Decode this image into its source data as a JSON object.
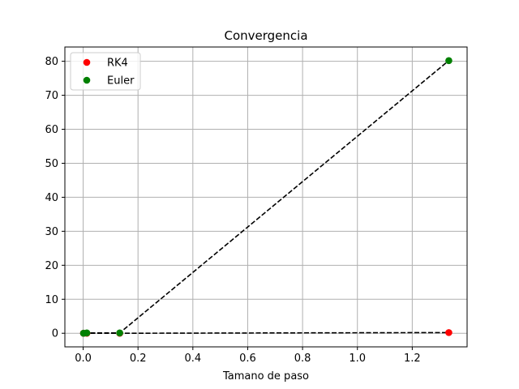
{
  "chart_data": {
    "type": "scatter",
    "title": "Convergencia",
    "xlabel": "Tamano de paso",
    "ylabel": "",
    "xlim": [
      -0.0667,
      1.4
    ],
    "ylim": [
      -4.0,
      84.2
    ],
    "xticks": [
      0.0,
      0.2,
      0.4,
      0.6,
      0.8,
      1.0,
      1.2
    ],
    "xtick_labels": [
      "0.0",
      "0.2",
      "0.4",
      "0.6",
      "0.8",
      "1.0",
      "1.2"
    ],
    "yticks": [
      0,
      10,
      20,
      30,
      40,
      50,
      60,
      70,
      80
    ],
    "ytick_labels": [
      "0",
      "10",
      "20",
      "30",
      "40",
      "50",
      "60",
      "70",
      "80"
    ],
    "grid": true,
    "legend_position": "top-left",
    "series": [
      {
        "name": "RK4",
        "color": "#ff0000",
        "marker": "circle",
        "line_style": "dashed",
        "line_color": "#000000",
        "x": [
          0.0013,
          0.0133,
          0.1333,
          1.3333
        ],
        "y": [
          0.0,
          0.0,
          0.0,
          0.2
        ]
      },
      {
        "name": "Euler",
        "color": "#008000",
        "marker": "circle",
        "line_style": "dashed",
        "line_color": "#000000",
        "x": [
          0.0013,
          0.0133,
          0.1333,
          1.3333
        ],
        "y": [
          0.0,
          0.1,
          0.1,
          80.2
        ]
      }
    ]
  }
}
